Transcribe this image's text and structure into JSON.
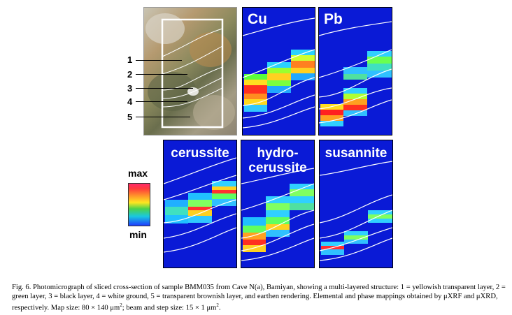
{
  "figure": {
    "photo_layers": [
      "1",
      "2",
      "3",
      "4",
      "5"
    ],
    "maps": [
      {
        "id": "cu",
        "title": "Cu"
      },
      {
        "id": "pb",
        "title": "Pb"
      },
      {
        "id": "cerussite",
        "title": "cerussite"
      },
      {
        "id": "hydrocerussite",
        "title": "hydro-\ncerussite"
      },
      {
        "id": "susannite",
        "title": "susannite"
      }
    ],
    "scale": {
      "max_label": "max",
      "min_label": "min"
    }
  },
  "caption": {
    "part1": "Fig. 6. Photomicrograph of sliced cross-section of sample BMM035 from Cave N(a), Bamiyan, showing a multi-layered structure: 1 = yellowish transparent layer, 2 = green layer, 3 = black layer, 4 = white ground, 5 = transparent brownish layer, and earthen rendering. Elemental and phase mappings obtained by μXRF and μXRD, respectively. Map size: 80 × 140 μm",
    "sup1": "2",
    "part2": "; beam and step size: 15 × 1 μm",
    "sup2": "2",
    "part3": "."
  }
}
